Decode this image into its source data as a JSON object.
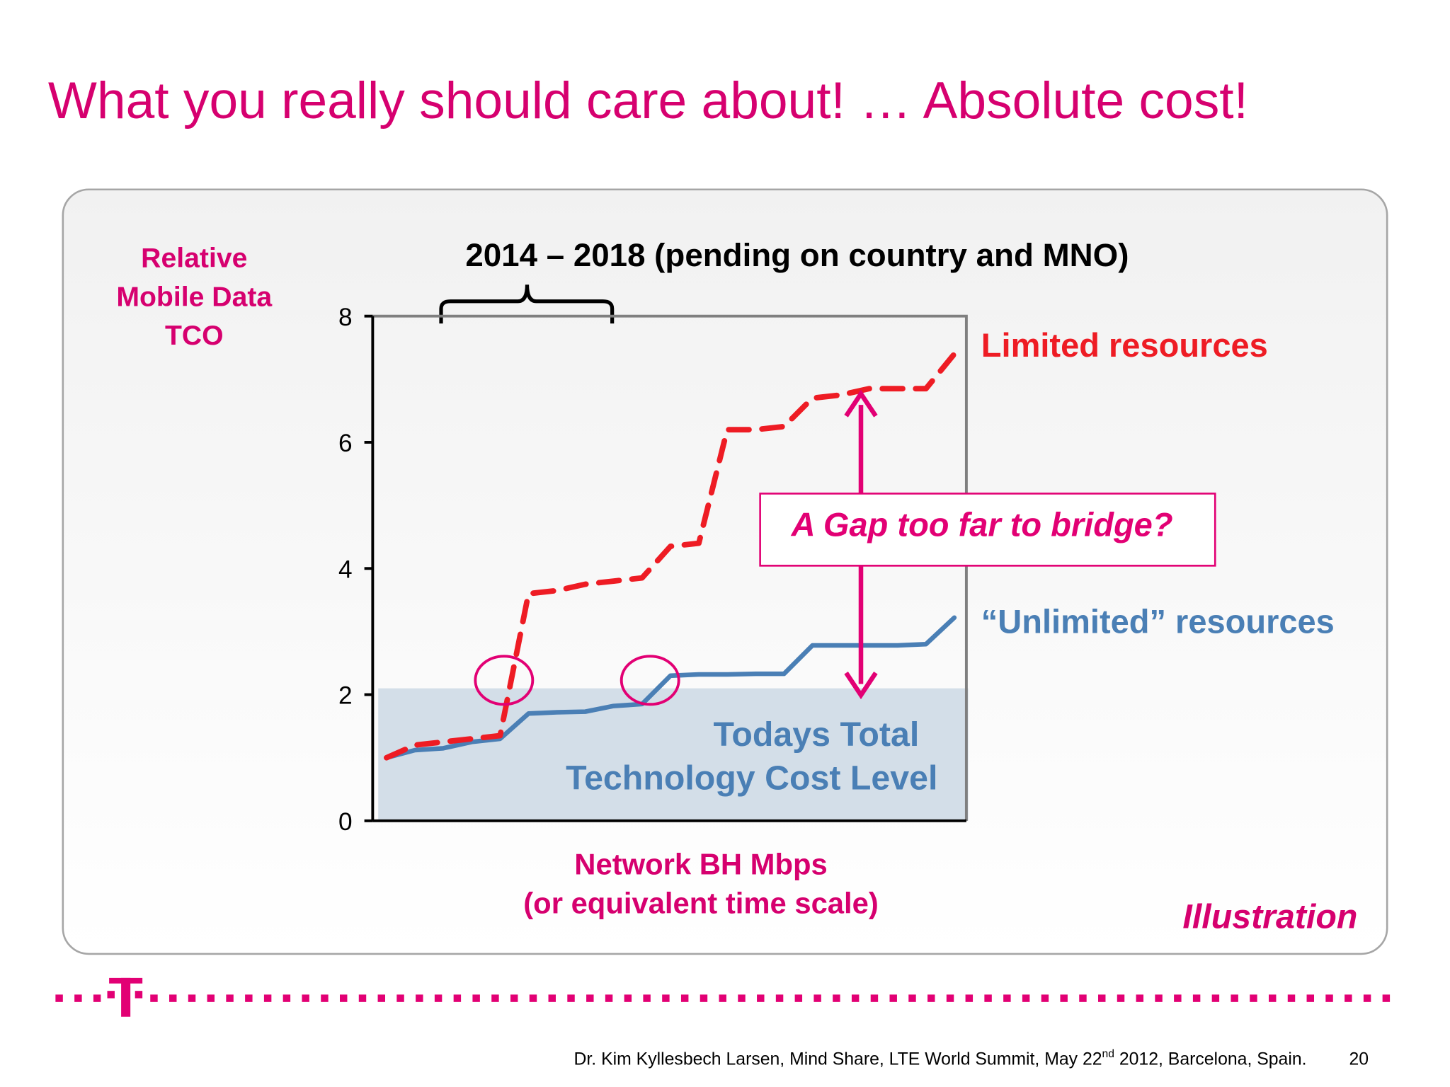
{
  "chart_data": {
    "type": "line",
    "title": "What you really should care about! … Absolute cost!",
    "ylabel": [
      "Relative",
      "Mobile Data",
      "TCO"
    ],
    "xlabel": [
      "Network BH Mbps",
      "(or equivalent time scale)"
    ],
    "period_annotation": "2014 – 2018 (pending on country and MNO)",
    "gap_annotation": "A Gap too far to bridge?",
    "note": "Illustration",
    "band": {
      "label": [
        "Todays Total",
        "Technology Cost Level"
      ],
      "value": 2.1,
      "color": "#d3dee8"
    },
    "categories": [
      null,
      null,
      null,
      null,
      null,
      null,
      null,
      null,
      null,
      null,
      null,
      null,
      null,
      null,
      null,
      null,
      null,
      null,
      null,
      null,
      null
    ],
    "series": [
      {
        "name": "Limited resources",
        "color": "#ee1c24",
        "dashed": true,
        "values": [
          1.0,
          1.2,
          1.25,
          1.3,
          1.35,
          3.6,
          3.65,
          3.75,
          3.8,
          3.85,
          4.35,
          4.4,
          6.2,
          6.2,
          6.25,
          6.7,
          6.75,
          6.85,
          6.85,
          6.85,
          7.4
        ]
      },
      {
        "name": "“Unlimited” resources",
        "color": "#4a7fb5",
        "dashed": false,
        "values": [
          1.0,
          1.12,
          1.15,
          1.25,
          1.3,
          1.7,
          1.72,
          1.73,
          1.82,
          1.85,
          2.3,
          2.32,
          2.32,
          2.33,
          2.33,
          2.78,
          2.78,
          2.78,
          2.78,
          2.8,
          3.22
        ]
      }
    ],
    "ylim": [
      0,
      8
    ],
    "yticks": [
      0,
      2,
      4,
      6,
      8
    ]
  },
  "footer": {
    "credit": [
      "Dr. Kim Kyllesbech Larsen, Mind Share, LTE World Summit, May 22",
      "nd",
      " 2012, Barcelona, Spain."
    ],
    "page": "20"
  }
}
